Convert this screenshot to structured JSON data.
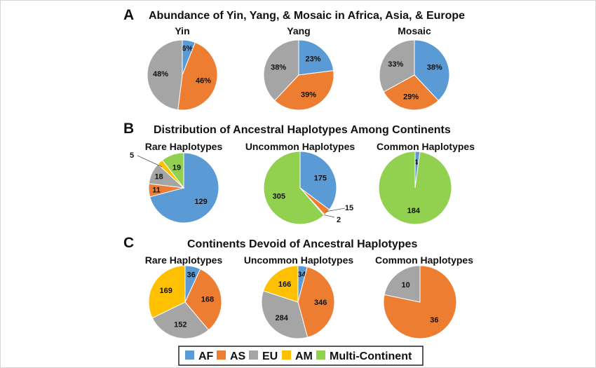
{
  "colors": {
    "AF": "#5B9BD5",
    "AS": "#ED7D31",
    "EU": "#A5A5A5",
    "AM": "#FFC000",
    "Multi-Continent": "#92D050"
  },
  "legend": {
    "items": [
      "AF",
      "AS",
      "EU",
      "AM",
      "Multi-Continent"
    ]
  },
  "chart_data": [
    {
      "type": "pie",
      "panel": "A",
      "section_title": "Abundance of Yin, Yang, & Mosaic in Africa, Asia, & Europe",
      "pies": [
        {
          "title": "Yin",
          "slices": [
            {
              "category": "AF",
              "value": 6,
              "label": "6%"
            },
            {
              "category": "AS",
              "value": 46,
              "label": "46%"
            },
            {
              "category": "EU",
              "value": 48,
              "label": "48%"
            }
          ]
        },
        {
          "title": "Yang",
          "slices": [
            {
              "category": "AF",
              "value": 23,
              "label": "23%"
            },
            {
              "category": "AS",
              "value": 39,
              "label": "39%"
            },
            {
              "category": "EU",
              "value": 38,
              "label": "38%"
            }
          ]
        },
        {
          "title": "Mosaic",
          "slices": [
            {
              "category": "AF",
              "value": 38,
              "label": "38%"
            },
            {
              "category": "AS",
              "value": 29,
              "label": "29%"
            },
            {
              "category": "EU",
              "value": 33,
              "label": "33%"
            }
          ]
        }
      ]
    },
    {
      "type": "pie",
      "panel": "B",
      "section_title": "Distribution of Ancestral Haplotypes Among Continents",
      "pies": [
        {
          "title": "Rare Haplotypes",
          "slices": [
            {
              "category": "AF",
              "value": 129,
              "label": "129"
            },
            {
              "category": "AS",
              "value": 11,
              "label": "11"
            },
            {
              "category": "EU",
              "value": 18,
              "label": "18"
            },
            {
              "category": "AM",
              "value": 5,
              "label": "5"
            },
            {
              "category": "Multi-Continent",
              "value": 19,
              "label": "19"
            }
          ]
        },
        {
          "title": "Uncommon Haplotypes",
          "slices": [
            {
              "category": "AF",
              "value": 175,
              "label": "175"
            },
            {
              "category": "AS",
              "value": 15,
              "label": "15"
            },
            {
              "category": "EU",
              "value": 2,
              "label": "2"
            },
            {
              "category": "Multi-Continent",
              "value": 305,
              "label": "305"
            }
          ]
        },
        {
          "title": "Common Haplotypes",
          "slices": [
            {
              "category": "AF",
              "value": 4,
              "label": "4"
            },
            {
              "category": "Multi-Continent",
              "value": 184,
              "label": "184"
            }
          ]
        }
      ]
    },
    {
      "type": "pie",
      "panel": "C",
      "section_title": "Continents Devoid of Ancestral Haplotypes",
      "pies": [
        {
          "title": "Rare Haplotypes",
          "slices": [
            {
              "category": "AF",
              "value": 36,
              "label": "36"
            },
            {
              "category": "AS",
              "value": 168,
              "label": "168"
            },
            {
              "category": "EU",
              "value": 152,
              "label": "152"
            },
            {
              "category": "AM",
              "value": 169,
              "label": "169"
            }
          ]
        },
        {
          "title": "Uncommon Haplotypes",
          "slices": [
            {
              "category": "AF",
              "value": 34,
              "label": "34"
            },
            {
              "category": "AS",
              "value": 346,
              "label": "346"
            },
            {
              "category": "EU",
              "value": 284,
              "label": "284"
            },
            {
              "category": "AM",
              "value": 166,
              "label": "166"
            }
          ]
        },
        {
          "title": "Common Haplotypes",
          "slices": [
            {
              "category": "AS",
              "value": 36,
              "label": "36"
            },
            {
              "category": "EU",
              "value": 10,
              "label": "10"
            }
          ]
        }
      ]
    }
  ]
}
